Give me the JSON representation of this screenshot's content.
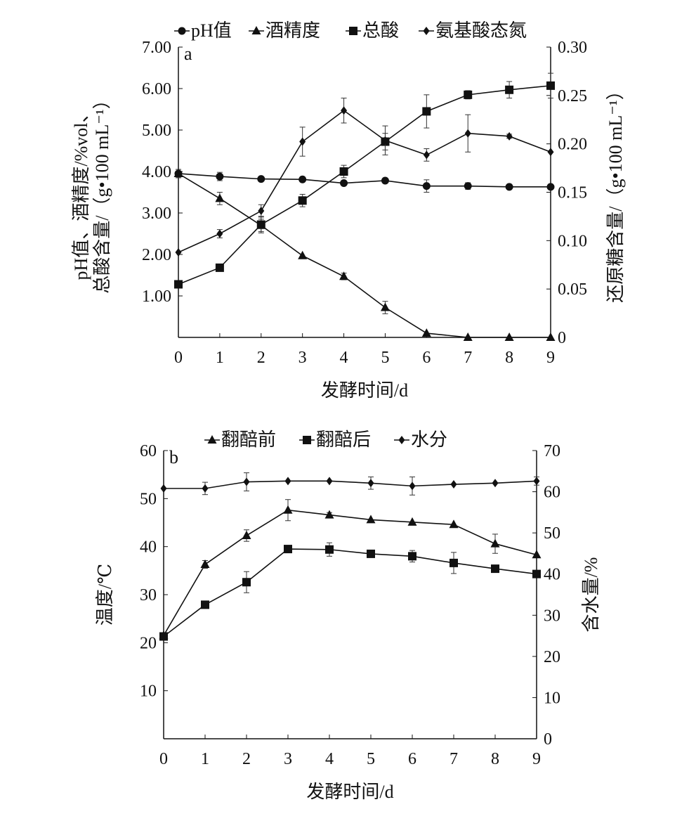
{
  "chart_data": [
    {
      "type": "line",
      "panel_label": "a",
      "xlabel": "发酵时间/d",
      "ylabel_lines": [
        "pH值、酒精度/%vol、",
        "总酸含量/（g•100 mL⁻¹）"
      ],
      "ylabel_right": "还原糖含量/（g•100 mL⁻¹）",
      "x": [
        0,
        1,
        2,
        3,
        4,
        5,
        6,
        7,
        8,
        9
      ],
      "xticks": [
        "0",
        "1",
        "2",
        "3",
        "4",
        "5",
        "6",
        "7",
        "8",
        "9"
      ],
      "ylim": [
        0,
        7
      ],
      "yticks": [
        "1.00",
        "2.00",
        "3.00",
        "4.00",
        "5.00",
        "6.00",
        "7.00"
      ],
      "ylim_right": [
        0,
        0.3
      ],
      "yticks_right": [
        "0",
        "0.05",
        "0.10",
        "0.15",
        "0.20",
        "0.25",
        "0.30"
      ],
      "legend_position": "top",
      "series": [
        {
          "name": "pH值",
          "marker": "circle",
          "values": [
            3.95,
            3.88,
            3.82,
            3.81,
            3.72,
            3.78,
            3.65,
            3.65,
            3.63,
            3.63
          ],
          "errors": [
            0.1,
            0.1,
            0,
            0,
            0,
            0,
            0.15,
            0.08,
            0,
            0
          ]
        },
        {
          "name": "酒精度",
          "marker": "triangle",
          "values": [
            3.95,
            3.35,
            2.7,
            1.97,
            1.47,
            0.72,
            0.1,
            0,
            0,
            0
          ],
          "errors": [
            0.1,
            0.15,
            0.15,
            0,
            0.08,
            0.15,
            0,
            0,
            0,
            0
          ]
        },
        {
          "name": "总酸",
          "marker": "square",
          "values": [
            1.28,
            1.68,
            2.72,
            3.3,
            4.0,
            4.72,
            5.45,
            5.85,
            5.97,
            6.07
          ],
          "errors": [
            0.05,
            0,
            0.2,
            0.15,
            0.15,
            0.2,
            0.4,
            0.1,
            0.2,
            0.3
          ]
        },
        {
          "name": "氨基酸态氮",
          "marker": "diamond",
          "values": [
            2.05,
            2.5,
            3.05,
            4.72,
            5.47,
            4.75,
            4.4,
            4.92,
            4.85,
            4.47
          ],
          "errors": [
            0,
            0.1,
            0.15,
            0.35,
            0.3,
            0.35,
            0.15,
            0.45,
            0.05,
            0
          ]
        }
      ]
    },
    {
      "type": "line",
      "panel_label": "b",
      "xlabel": "发酵时间/d",
      "ylabel": "温度/℃",
      "ylabel_right": "含水量/%",
      "x": [
        0,
        1,
        2,
        3,
        4,
        5,
        6,
        7,
        8,
        9
      ],
      "xticks": [
        "0",
        "1",
        "2",
        "3",
        "4",
        "5",
        "6",
        "7",
        "8",
        "9"
      ],
      "ylim": [
        0,
        60
      ],
      "yticks": [
        "10",
        "20",
        "30",
        "40",
        "50",
        "60"
      ],
      "ylim_right": [
        0,
        70
      ],
      "yticks_right": [
        "0",
        "10",
        "20",
        "30",
        "40",
        "50",
        "60",
        "70"
      ],
      "legend_position": "top",
      "series": [
        {
          "name": "翻醅前",
          "marker": "triangle",
          "axis": "left",
          "values": [
            21.5,
            36.3,
            42.3,
            47.6,
            46.6,
            45.6,
            45.1,
            44.6,
            40.6,
            38.3
          ],
          "errors": [
            0,
            0.8,
            1.2,
            2.2,
            0.5,
            0,
            0,
            0,
            2,
            0
          ]
        },
        {
          "name": "翻醅后",
          "marker": "square",
          "axis": "left",
          "values": [
            21.3,
            27.9,
            32.6,
            39.5,
            39.4,
            38.5,
            38.0,
            36.6,
            35.4,
            34.3
          ],
          "errors": [
            0,
            0,
            2.2,
            0,
            1.4,
            0,
            1.2,
            2.2,
            0,
            0
          ]
        },
        {
          "name": "水分",
          "marker": "diamond",
          "axis": "right",
          "values": [
            60.8,
            60.8,
            62.4,
            62.6,
            62.6,
            62.1,
            61.4,
            61.8,
            62.1,
            62.6
          ],
          "errors": [
            0,
            1.5,
            2.2,
            0,
            0,
            1.5,
            2.2,
            0,
            0,
            1
          ]
        }
      ]
    }
  ]
}
